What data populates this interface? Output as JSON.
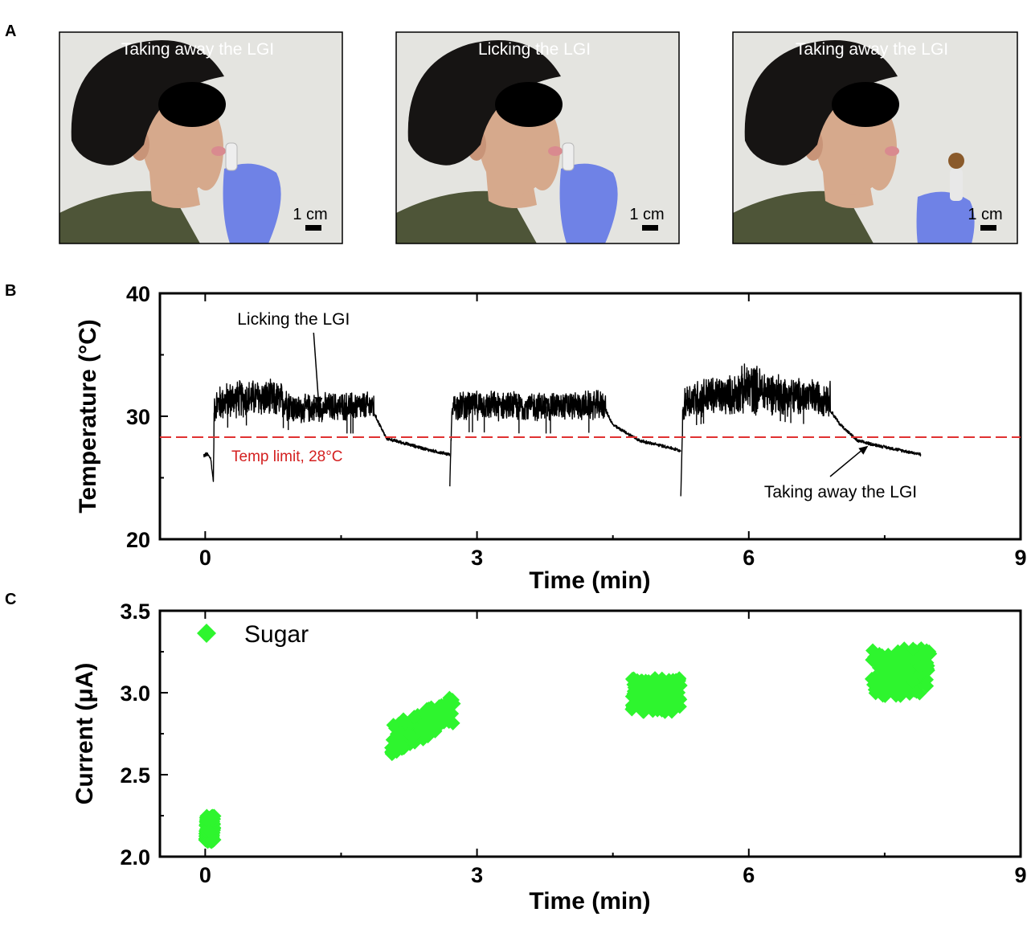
{
  "panels": {
    "a": {
      "letter": "A",
      "photos": [
        {
          "caption": "Taking away the LGI",
          "scale_label": "1 cm",
          "holding_lgi": false
        },
        {
          "caption": "Licking the LGI",
          "scale_label": "1 cm",
          "holding_lgi": false
        },
        {
          "caption": "Taking away the LGI",
          "scale_label": "1 cm",
          "holding_lgi": true
        }
      ]
    },
    "b": {
      "letter": "B"
    },
    "c": {
      "letter": "C"
    }
  },
  "colors": {
    "background": "#ffffff",
    "photo_wall": "#e4e4e0",
    "hair": "#161413",
    "skin": "#d6a98c",
    "shirt": "#4e5538",
    "glove": "#6f82e6",
    "trace": "#000000",
    "limit_line": "#e03131",
    "limit_text": "#d42020",
    "sugar": "#2ef52e"
  },
  "chart_data": [
    {
      "type": "line",
      "panel": "B",
      "xlabel": "Time (min)",
      "ylabel": "Temperature (°C)",
      "xlim": [
        -0.5,
        9
      ],
      "ylim": [
        20,
        40
      ],
      "xticks": [
        0,
        3,
        6,
        9
      ],
      "yticks": [
        20,
        30,
        40
      ],
      "grid": false,
      "reference_line": {
        "y": 28.3,
        "label": "Temp limit, 28°C",
        "style": "dashed"
      },
      "annotations": [
        {
          "text": "Licking the LGI",
          "x": 1.25,
          "y": 31.7
        },
        {
          "text": "Taking away the LGI",
          "x": 7.3,
          "y": 27.6
        }
      ],
      "series": [
        {
          "name": "Temperature",
          "noisy_band": true,
          "segments": [
            {
              "x": [
                -0.02,
                0.02,
                0.06,
                0.09,
                0.1,
                0.3,
                0.6,
                0.9,
                1.0,
                1.2,
                1.5,
                1.86,
                1.86,
                2.0,
                2.2,
                2.5,
                2.7
              ],
              "y": [
                26.8,
                26.9,
                26.6,
                24.7,
                30.9,
                31.4,
                31.5,
                31.2,
                30.5,
                30.7,
                30.8,
                30.8,
                30.3,
                28.2,
                27.8,
                27.2,
                26.9
              ],
              "noise": [
                0.2,
                0.2,
                0.2,
                0.0,
                1.6,
                1.7,
                1.7,
                1.7,
                1.3,
                1.3,
                1.3,
                1.3,
                0.2,
                0.15,
                0.15,
                0.15,
                0.15
              ]
            },
            {
              "x": [
                2.7,
                2.72,
                2.75,
                3.0,
                3.5,
                4.0,
                4.42,
                4.42,
                4.5,
                4.8,
                5.1,
                5.25
              ],
              "y": [
                24.3,
                29.9,
                30.9,
                30.9,
                30.8,
                30.8,
                30.9,
                30.5,
                29.3,
                28.0,
                27.5,
                27.2
              ],
              "noise": [
                0.0,
                0.8,
                1.3,
                1.3,
                1.3,
                1.3,
                1.3,
                0.2,
                0.15,
                0.15,
                0.15,
                0.15
              ]
            },
            {
              "x": [
                5.25,
                5.27,
                5.3,
                5.5,
                5.8,
                6.0,
                6.2,
                6.5,
                6.9,
                6.9,
                7.0,
                7.2,
                7.5,
                7.9
              ],
              "y": [
                23.5,
                29.8,
                31.3,
                31.6,
                31.7,
                32.3,
                32.0,
                31.6,
                31.5,
                30.5,
                29.4,
                28.0,
                27.5,
                26.9
              ],
              "noise": [
                0.0,
                0.8,
                1.7,
                1.8,
                1.8,
                2.4,
                2.0,
                1.7,
                1.6,
                0.2,
                0.15,
                0.15,
                0.15,
                0.15
              ]
            }
          ]
        }
      ]
    },
    {
      "type": "scatter",
      "panel": "C",
      "xlabel": "Time (min)",
      "ylabel": "Current (μA)",
      "xlim": [
        -0.5,
        9
      ],
      "ylim": [
        2.0,
        3.5
      ],
      "xticks": [
        0,
        3,
        6,
        9
      ],
      "yticks": [
        "2.0",
        "2.5",
        "3.0",
        "3.5"
      ],
      "grid": false,
      "legend": {
        "entries": [
          "Sugar"
        ],
        "placement": "top-left"
      },
      "series": [
        {
          "name": "Sugar",
          "marker": "diamond",
          "clusters": [
            {
              "x_range": [
                0.0,
                0.1
              ],
              "y_range": [
                2.09,
                2.25
              ]
            },
            {
              "x_range": [
                2.05,
                2.75
              ],
              "y_trend": [
                2.71,
                2.9
              ],
              "y_spread": 0.09
            },
            {
              "x_range": [
                4.7,
                5.25
              ],
              "y_range": [
                2.88,
                3.09
              ]
            },
            {
              "x_range": [
                7.35,
                8.0
              ],
              "y_range": [
                2.98,
                3.27
              ]
            }
          ]
        }
      ]
    }
  ]
}
